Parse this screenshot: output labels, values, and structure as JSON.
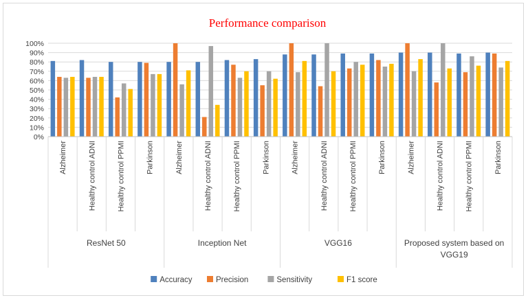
{
  "chart_data": {
    "type": "bar",
    "title": "Performance  comparison",
    "xlabel": "",
    "ylabel": "",
    "ylim": [
      0,
      1
    ],
    "y_ticks": [
      "0%",
      "10%",
      "20%",
      "30%",
      "40%",
      "50%",
      "60%",
      "70%",
      "80%",
      "90%",
      "100%"
    ],
    "grid": false,
    "legend_position": "bottom",
    "groups": [
      {
        "name": "ResNet 50",
        "categories": [
          "Alzheimer",
          "Healthy control ADNI",
          "Healthy control PPMI",
          "Parkinson"
        ]
      },
      {
        "name": "Inception Net",
        "categories": [
          "Alzheimer",
          "Healthy control ADNI",
          "Healthy control PPMI",
          "Parkinson"
        ]
      },
      {
        "name": "VGG16",
        "categories": [
          "Alzheimer",
          "Healthy control ADNI",
          "Healthy control PPMI",
          "Parkinson"
        ]
      },
      {
        "name": "Proposed system based on VGG19",
        "categories": [
          "Alzheimer",
          "Healthy control ADNI",
          "Healthy control PPMI",
          "Parkinson"
        ]
      }
    ],
    "series": [
      {
        "name": "Accuracy",
        "color": "#4f81bd",
        "values": [
          0.81,
          0.82,
          0.8,
          0.8,
          0.8,
          0.8,
          0.82,
          0.83,
          0.88,
          0.88,
          0.89,
          0.89,
          0.9,
          0.9,
          0.89,
          0.9
        ]
      },
      {
        "name": "Precision",
        "color": "#ed7d31",
        "values": [
          0.64,
          0.63,
          0.42,
          0.79,
          1.0,
          0.21,
          0.77,
          0.55,
          1.0,
          0.54,
          0.73,
          0.82,
          1.0,
          0.58,
          0.69,
          0.89
        ]
      },
      {
        "name": "Sensitivity",
        "color": "#a5a5a5",
        "values": [
          0.63,
          0.64,
          0.57,
          0.67,
          0.56,
          0.97,
          0.63,
          0.7,
          0.69,
          1.0,
          0.8,
          0.75,
          0.7,
          1.0,
          0.86,
          0.74
        ]
      },
      {
        "name": "F1 score",
        "color": "#ffc000",
        "values": [
          0.64,
          0.64,
          0.51,
          0.67,
          0.71,
          0.34,
          0.7,
          0.62,
          0.81,
          0.7,
          0.77,
          0.78,
          0.83,
          0.73,
          0.76,
          0.81
        ]
      }
    ]
  }
}
